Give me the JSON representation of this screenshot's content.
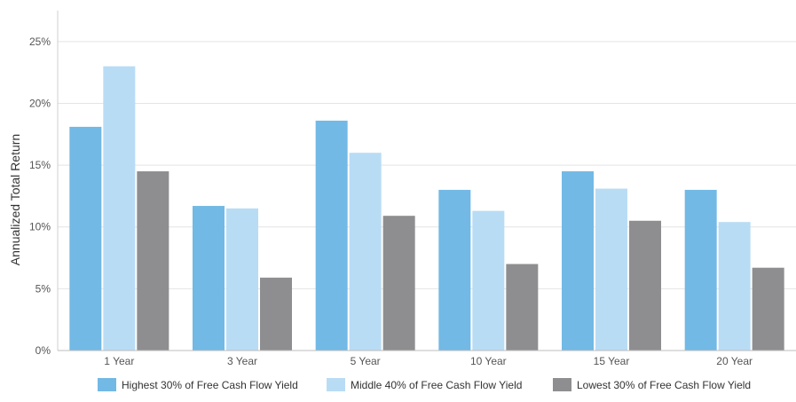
{
  "chart_data": {
    "type": "bar",
    "title": "",
    "xlabel": "",
    "ylabel": "Annualized Total Return",
    "categories": [
      "1 Year",
      "3 Year",
      "5 Year",
      "10 Year",
      "15 Year",
      "20 Year"
    ],
    "ylim": [
      0,
      27.5
    ],
    "yticks": [
      0,
      5,
      10,
      15,
      20,
      25
    ],
    "ytick_labels": [
      "0%",
      "5%",
      "10%",
      "15%",
      "20%",
      "25%"
    ],
    "grid": true,
    "legend_position": "bottom",
    "series": [
      {
        "name": "Highest 30% of Free Cash Flow Yield",
        "color": "#72b9e5",
        "values": [
          18.1,
          11.7,
          18.6,
          13.0,
          14.5,
          13.0
        ]
      },
      {
        "name": "Middle 40% of Free Cash Flow Yield",
        "color": "#b9dcf5",
        "values": [
          23.0,
          11.5,
          16.0,
          11.3,
          13.1,
          10.4
        ]
      },
      {
        "name": "Lowest 30% of Free Cash Flow Yield",
        "color": "#8e8e90",
        "values": [
          14.5,
          5.9,
          10.9,
          7.0,
          10.5,
          6.7
        ]
      }
    ]
  }
}
